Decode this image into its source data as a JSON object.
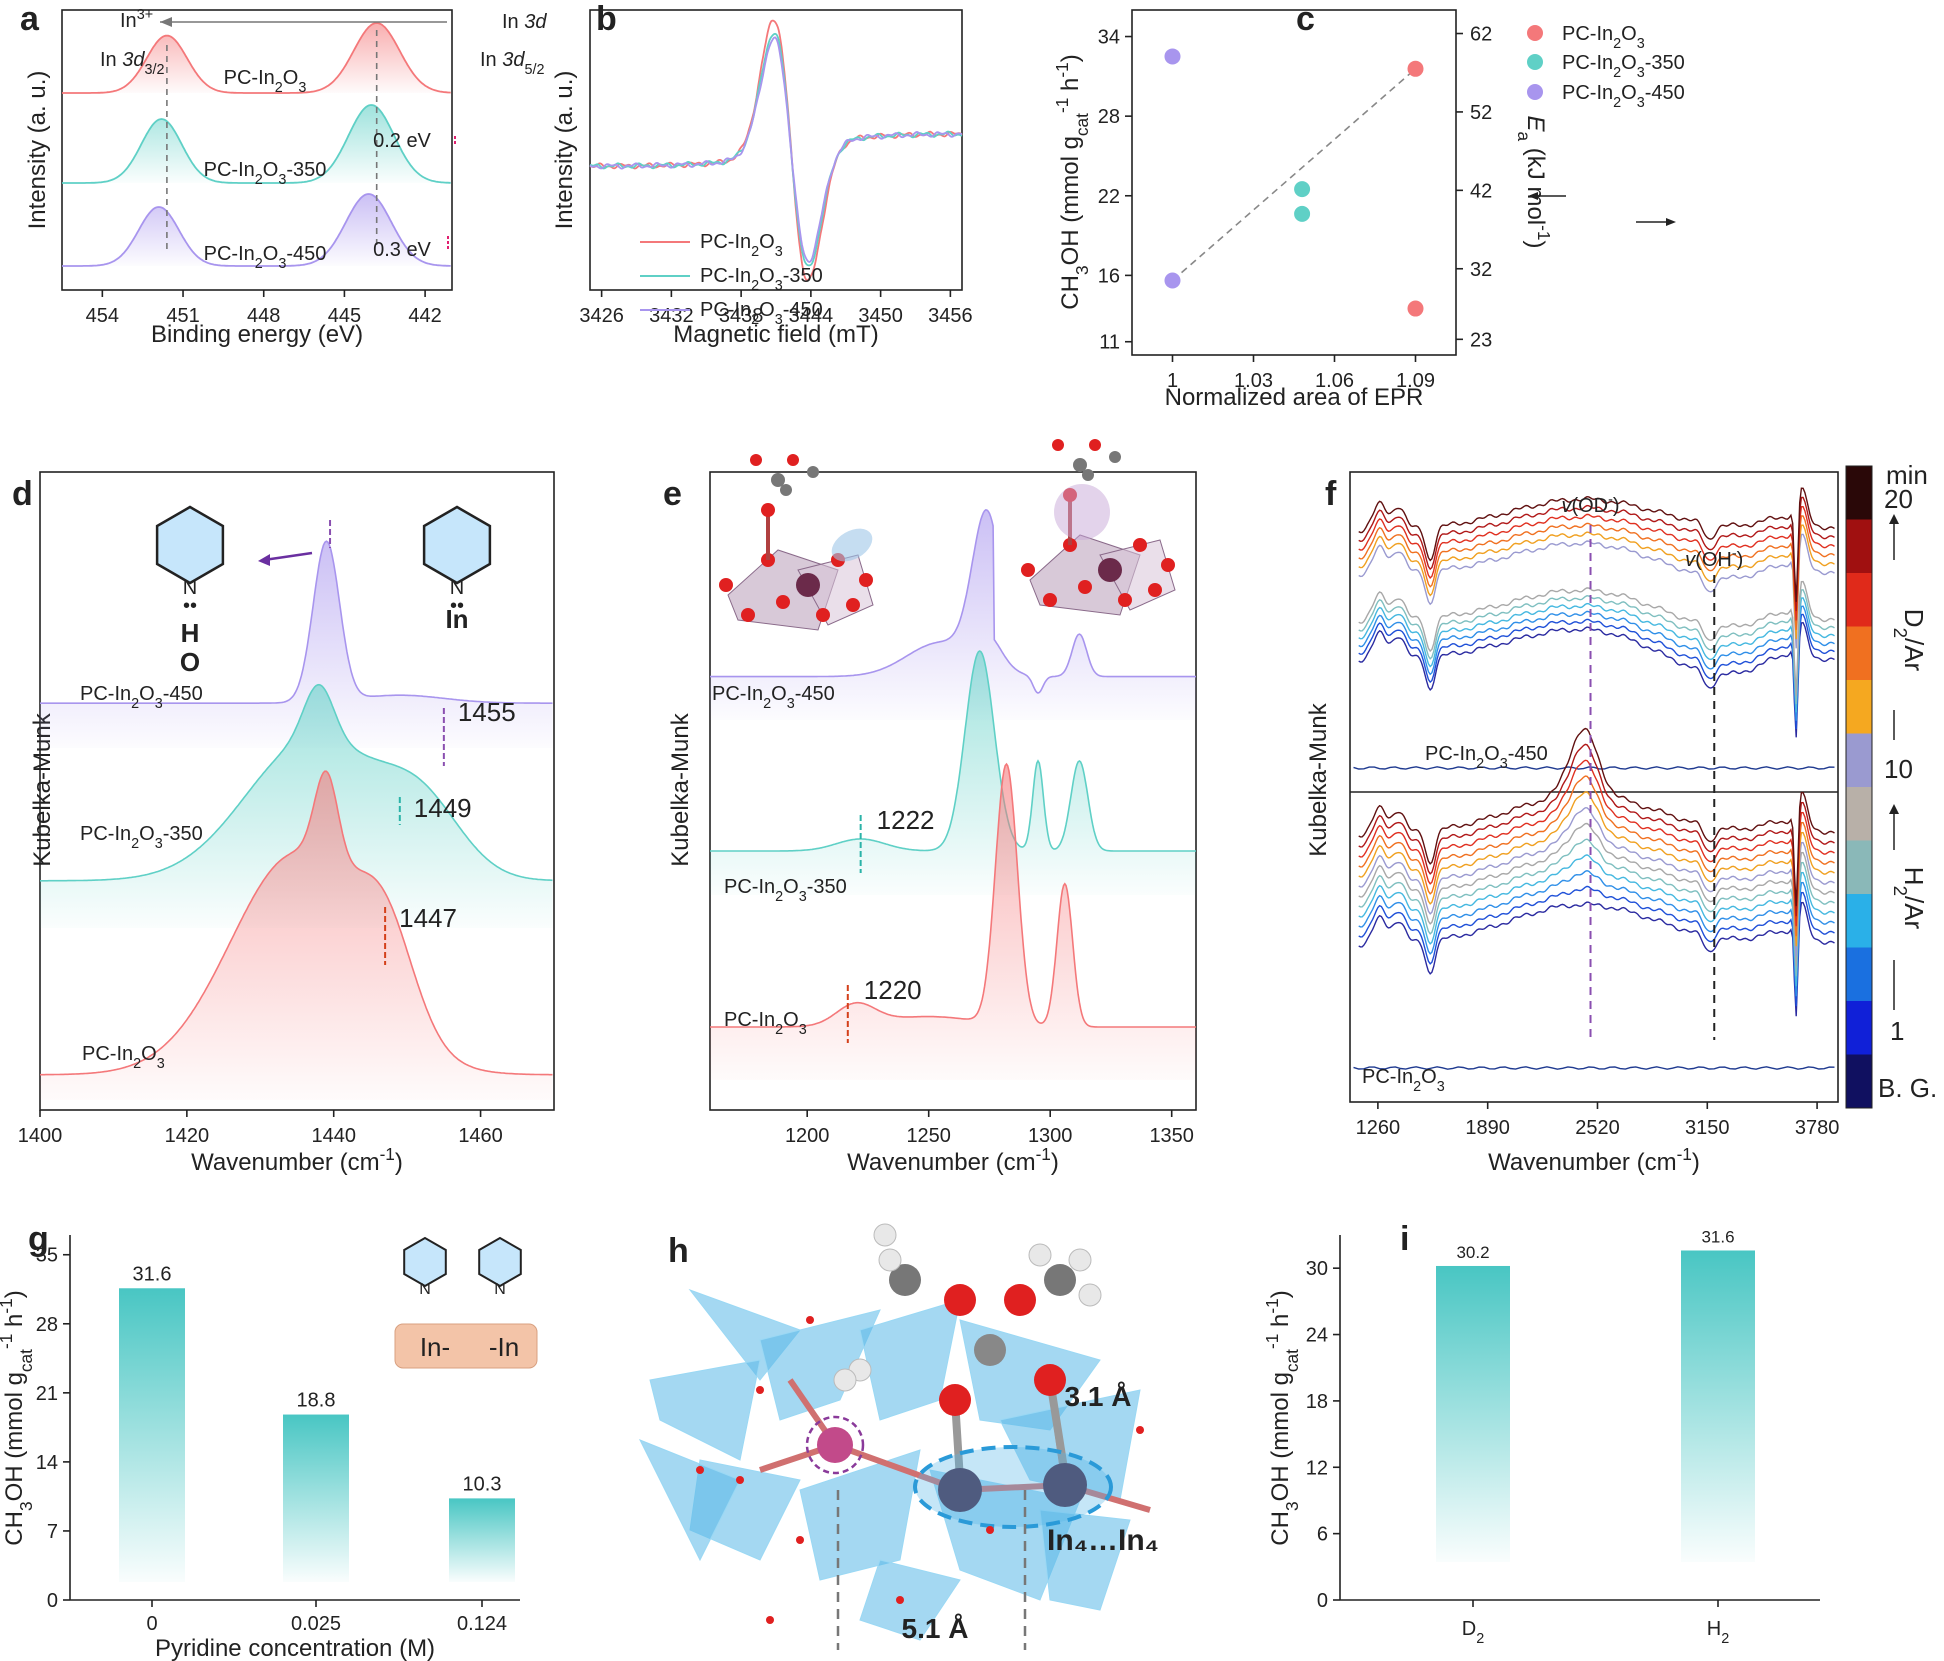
{
  "panels": {
    "a": {
      "letter": "a"
    },
    "b": {
      "letter": "b"
    },
    "c": {
      "letter": "c"
    },
    "d": {
      "letter": "d"
    },
    "e": {
      "letter": "e"
    },
    "f": {
      "letter": "f"
    },
    "g": {
      "letter": "g"
    },
    "h": {
      "letter": "h"
    },
    "i": {
      "letter": "i"
    }
  },
  "colors": {
    "pc": "#f4787a",
    "pc350": "#5fd0c6",
    "pc450": "#a895ee",
    "teal_bar": "#3fc3c0",
    "purple_dash": "#8a4fb0"
  },
  "chart_data": [
    {
      "panel": "a",
      "type": "line",
      "title": "",
      "xlabel": "Binding energy (eV)",
      "ylabel": "Intensity (a. u.)",
      "xlim": [
        455.5,
        441
      ],
      "xticks": [
        454,
        451,
        448,
        445,
        442
      ],
      "series": [
        {
          "name": "PC-In2O3",
          "label_main": "PC-In",
          "sub1": "2",
          "mid": "O",
          "sub2": "3",
          "suffix": "",
          "peaks": [
            451.6,
            443.8
          ]
        },
        {
          "name": "PC-In2O3-350",
          "label_main": "PC-In",
          "sub1": "2",
          "mid": "O",
          "sub2": "3",
          "suffix": "-350",
          "peaks": [
            451.8,
            444.0
          ]
        },
        {
          "name": "PC-In2O3-450",
          "label_main": "PC-In",
          "sub1": "2",
          "mid": "O",
          "sub2": "3",
          "suffix": "-450",
          "peaks": [
            451.9,
            444.1
          ]
        }
      ],
      "annotations": {
        "in3plus": "In",
        "in3plus_sup": "3+",
        "in3d": "In 3d",
        "in3d32": "In 3d",
        "in3d32_sub": "3/2",
        "in3d52": "In 3d",
        "in3d52_sub": "5/2",
        "shift1": "0.2 eV",
        "shift2": "0.3 eV"
      }
    },
    {
      "panel": "b",
      "type": "line",
      "xlabel": "Magnetic field (mT)",
      "ylabel": "Intensity (a. u.)",
      "xlim": [
        3425,
        3457
      ],
      "xticks": [
        3426,
        3432,
        3438,
        3444,
        3450,
        3456
      ],
      "series": [
        {
          "name": "PC-In2O3",
          "suffix": "",
          "amplitude": 1.0
        },
        {
          "name": "PC-In2O3-350",
          "suffix": "-350",
          "amplitude": 0.9
        },
        {
          "name": "PC-In2O3-450",
          "suffix": "-450",
          "amplitude": 0.85
        }
      ]
    },
    {
      "panel": "c",
      "type": "scatter",
      "xlabel": "Normalized area of EPR",
      "ylabel_left": "CH3OH (mmol gcat-1 h-1)",
      "ylabel_right": "Ea (kJ mol-1)",
      "xlim": [
        0.985,
        1.105
      ],
      "xticks": [
        1,
        1.03,
        1.06,
        1.09
      ],
      "ylim_left": [
        10,
        36
      ],
      "yticks_left": [
        11,
        16,
        22,
        28,
        34
      ],
      "ylim_right": [
        21,
        65
      ],
      "yticks_right": [
        23,
        32,
        42,
        52,
        62
      ],
      "series": [
        {
          "name": "PC-In2O3",
          "suffix": "",
          "x": 1.09,
          "ch3oh": 13.5,
          "ea": 57.5
        },
        {
          "name": "PC-In2O3-350",
          "suffix": "-350",
          "x": 1.048,
          "ch3oh": 22.5,
          "ea": 39
        },
        {
          "name": "PC-In2O3-450",
          "suffix": "-450",
          "x": 1.0,
          "ch3oh": 32.5,
          "ea": 30.5
        }
      ]
    },
    {
      "panel": "d",
      "type": "line",
      "xlabel": "Wavenumber (cm-1)",
      "ylabel": "Kubelka-Munk",
      "xlim": [
        1400,
        1470
      ],
      "xticks": [
        1400,
        1420,
        1440,
        1460
      ],
      "series": [
        {
          "name": "PC-In2O3-450",
          "suffix": "-450",
          "marker": "1455"
        },
        {
          "name": "PC-In2O3-350",
          "suffix": "-350",
          "marker": "1449"
        },
        {
          "name": "PC-In2O3",
          "suffix": "",
          "marker": "1447"
        }
      ],
      "annotations": {
        "ho_h": "H",
        "ho_o": "O",
        "in_lbl": "In",
        "n_lbl": "N"
      }
    },
    {
      "panel": "e",
      "type": "line",
      "xlabel": "Wavenumber (cm-1)",
      "ylabel": "Kubelka-Munk",
      "xlim": [
        1160,
        1360
      ],
      "xticks": [
        1200,
        1250,
        1300,
        1350
      ],
      "series": [
        {
          "name": "PC-In2O3-450",
          "suffix": "-450",
          "marker": ""
        },
        {
          "name": "PC-In2O3-350",
          "suffix": "-350",
          "marker": "1222"
        },
        {
          "name": "PC-In2O3",
          "suffix": "",
          "marker": "1220"
        }
      ]
    },
    {
      "panel": "f",
      "type": "line",
      "xlabel": "Wavenumber (cm-1)",
      "ylabel": "Kubelka-Munk",
      "xlim": [
        1100,
        3900
      ],
      "xticks": [
        1260,
        1890,
        2520,
        3150,
        3780
      ],
      "annotations": {
        "od": "v(OD",
        "od_sup": "-",
        "oh": "v(OH",
        "oh_sup": "-",
        "top_sample": "PC-In2O3-450",
        "bottom_sample": "PC-In2O3"
      },
      "colorbar": {
        "title": "min",
        "labels": [
          "20",
          "10",
          "1",
          "B. G."
        ],
        "d2": "D2/Ar",
        "h2": "H2/Ar"
      }
    },
    {
      "panel": "g",
      "type": "bar",
      "xlabel": "Pyridine concentration (M)",
      "ylabel": "CH3OH (mmol gcat-1 h-1)",
      "categories": [
        "0",
        "0.025",
        "0.124"
      ],
      "values": [
        31.6,
        18.8,
        10.3
      ],
      "value_labels": [
        "31.6",
        "18.8",
        "10.3"
      ],
      "ylim": [
        0,
        37
      ],
      "yticks": [
        0,
        7,
        14,
        21,
        28,
        35
      ],
      "inset": {
        "left": "In-",
        "right": "-In",
        "n": "N"
      }
    },
    {
      "panel": "h",
      "type": "table",
      "annotations": {
        "d1": "3.1 Å",
        "d2": "5.1 Å",
        "in4": "In₄…In₄"
      }
    },
    {
      "panel": "i",
      "type": "bar",
      "xlabel": "",
      "ylabel": "CH3OH (mmol gcat-1 h-1)",
      "categories": [
        "D2",
        "H2"
      ],
      "values": [
        30.2,
        31.6
      ],
      "value_labels": [
        "30.2",
        "31.6"
      ],
      "ylim": [
        0,
        33
      ],
      "yticks": [
        0,
        6,
        12,
        18,
        24,
        30
      ]
    }
  ]
}
